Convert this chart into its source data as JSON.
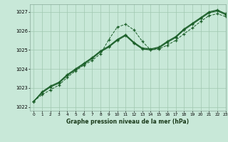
{
  "title": "Graphe pression niveau de la mer (hPa)",
  "background_color": "#c8e8d8",
  "grid_color": "#a0c8b0",
  "line_color": "#1a5e28",
  "xlim": [
    -0.5,
    23
  ],
  "ylim": [
    1021.8,
    1027.4
  ],
  "yticks": [
    1022,
    1023,
    1024,
    1025,
    1026,
    1027
  ],
  "xticks": [
    0,
    1,
    2,
    3,
    4,
    5,
    6,
    7,
    8,
    9,
    10,
    11,
    12,
    13,
    14,
    15,
    16,
    17,
    18,
    19,
    20,
    21,
    22,
    23
  ],
  "series1_x": [
    0,
    1,
    2,
    3,
    4,
    5,
    6,
    7,
    8,
    9,
    10,
    11,
    12,
    13,
    14,
    15,
    16,
    17,
    18,
    19,
    20,
    21,
    22,
    23
  ],
  "series1_y": [
    1022.3,
    1022.65,
    1022.9,
    1023.15,
    1023.55,
    1023.9,
    1024.2,
    1024.45,
    1024.8,
    1025.55,
    1026.2,
    1026.35,
    1026.05,
    1025.45,
    1025.0,
    1025.05,
    1025.25,
    1025.5,
    1025.85,
    1026.15,
    1026.5,
    1026.8,
    1026.9,
    1026.75
  ],
  "series2_x": [
    0,
    1,
    2,
    3,
    4,
    5,
    6,
    7,
    8,
    9,
    10,
    11,
    12,
    13,
    14,
    15,
    16,
    17,
    18,
    19,
    20,
    21,
    22,
    23
  ],
  "series2_y": [
    1022.3,
    1022.75,
    1023.05,
    1023.25,
    1023.65,
    1023.95,
    1024.25,
    1024.55,
    1024.9,
    1025.15,
    1025.5,
    1025.75,
    1025.35,
    1025.05,
    1025.0,
    1025.1,
    1025.4,
    1025.65,
    1026.05,
    1026.35,
    1026.65,
    1026.95,
    1027.05,
    1026.85
  ],
  "series3_x": [
    0,
    1,
    2,
    3,
    4,
    5,
    6,
    7,
    8,
    9,
    10,
    11,
    12,
    13,
    14,
    15,
    16,
    17,
    18,
    19,
    20,
    21,
    22,
    23
  ],
  "series3_y": [
    1022.3,
    1022.8,
    1023.1,
    1023.3,
    1023.7,
    1024.0,
    1024.3,
    1024.6,
    1024.95,
    1025.2,
    1025.55,
    1025.8,
    1025.4,
    1025.1,
    1025.05,
    1025.15,
    1025.45,
    1025.7,
    1026.1,
    1026.4,
    1026.7,
    1027.0,
    1027.1,
    1026.9
  ]
}
